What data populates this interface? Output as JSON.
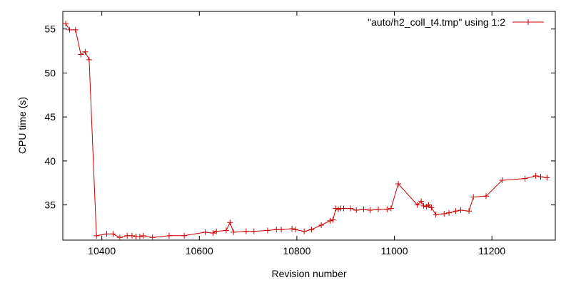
{
  "chart_data": {
    "type": "line",
    "title": "",
    "xlabel": "Revision number",
    "ylabel": "CPU time (s)",
    "xlim": [
      10320,
      11330
    ],
    "ylim": [
      31,
      57
    ],
    "xticks": [
      10400,
      10600,
      10800,
      11000,
      11200
    ],
    "yticks": [
      35,
      40,
      45,
      50,
      55
    ],
    "grid": false,
    "legend_position": "top-right",
    "series": [
      {
        "name": "\"auto/h2_coll_t4.tmp\" using 1:2",
        "color": "#cc0000",
        "marker": "plus",
        "points": [
          [
            10326,
            55.6
          ],
          [
            10334,
            54.9
          ],
          [
            10346,
            54.9
          ],
          [
            10357,
            52.1
          ],
          [
            10366,
            52.4
          ],
          [
            10374,
            51.5
          ],
          [
            10389,
            31.5
          ],
          [
            10410,
            31.7
          ],
          [
            10423,
            31.7
          ],
          [
            10437,
            31.3
          ],
          [
            10452,
            31.5
          ],
          [
            10462,
            31.5
          ],
          [
            10470,
            31.4
          ],
          [
            10478,
            31.4
          ],
          [
            10485,
            31.5
          ],
          [
            10504,
            31.3
          ],
          [
            10538,
            31.5
          ],
          [
            10569,
            31.5
          ],
          [
            10612,
            31.9
          ],
          [
            10628,
            31.8
          ],
          [
            10635,
            32.0
          ],
          [
            10655,
            32.1
          ],
          [
            10663,
            33.0
          ],
          [
            10670,
            31.9
          ],
          [
            10696,
            32.0
          ],
          [
            10712,
            32.0
          ],
          [
            10740,
            32.1
          ],
          [
            10758,
            32.2
          ],
          [
            10768,
            32.2
          ],
          [
            10790,
            32.3
          ],
          [
            10797,
            32.2
          ],
          [
            10815,
            32.0
          ],
          [
            10830,
            32.2
          ],
          [
            10850,
            32.7
          ],
          [
            10868,
            33.2
          ],
          [
            10874,
            33.3
          ],
          [
            10880,
            34.6
          ],
          [
            10885,
            34.5
          ],
          [
            10890,
            34.6
          ],
          [
            10896,
            34.6
          ],
          [
            10910,
            34.6
          ],
          [
            10922,
            34.4
          ],
          [
            10937,
            34.5
          ],
          [
            10950,
            34.4
          ],
          [
            10967,
            34.5
          ],
          [
            10985,
            34.5
          ],
          [
            10993,
            34.6
          ],
          [
            11008,
            37.4
          ],
          [
            11047,
            35.0
          ],
          [
            11055,
            35.4
          ],
          [
            11060,
            34.9
          ],
          [
            11066,
            34.8
          ],
          [
            11070,
            35.0
          ],
          [
            11076,
            34.7
          ],
          [
            11085,
            33.9
          ],
          [
            11102,
            34.0
          ],
          [
            11112,
            34.1
          ],
          [
            11126,
            34.3
          ],
          [
            11136,
            34.4
          ],
          [
            11153,
            34.3
          ],
          [
            11162,
            35.9
          ],
          [
            11188,
            36.0
          ],
          [
            11221,
            37.8
          ],
          [
            11268,
            38.0
          ],
          [
            11290,
            38.3
          ],
          [
            11300,
            38.2
          ],
          [
            11313,
            38.1
          ]
        ]
      }
    ]
  }
}
